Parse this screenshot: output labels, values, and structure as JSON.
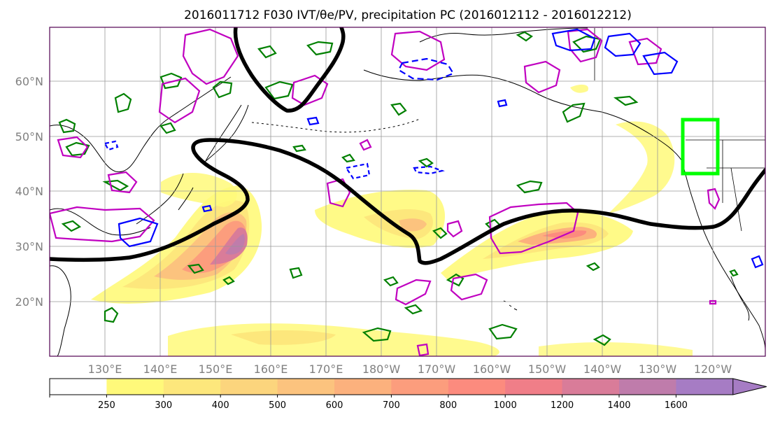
{
  "title": "2016011712 F030 IVT/θe/PV, precipitation PC (2016012112 - 2016012212)",
  "lat_labels": [
    "20°N",
    "30°N",
    "40°N",
    "50°N",
    "60°N"
  ],
  "lon_labels": [
    "130°E",
    "140°E",
    "150°E",
    "160°E",
    "170°E",
    "180°W",
    "170°W",
    "160°W",
    "150°W",
    "140°W",
    "130°W",
    "120°W"
  ],
  "colorbar": {
    "ticks": [
      "250",
      "300",
      "400",
      "500",
      "600",
      "700",
      "800",
      "1000",
      "1200",
      "1400",
      "1600"
    ],
    "colors": [
      "#ffffff",
      "#fff97a",
      "#fde77c",
      "#fcd57d",
      "#fcc37e",
      "#fcb17d",
      "#fc9d7d",
      "#fc8b7e",
      "#f07e88",
      "#d97c99",
      "#bf7cab",
      "#a67cc4"
    ]
  },
  "colors": {
    "theta_e": "#000000",
    "pv_high": "#c000c0",
    "pv_low": "#0000ff",
    "precip": "#008000",
    "box": "#00ff00"
  }
}
